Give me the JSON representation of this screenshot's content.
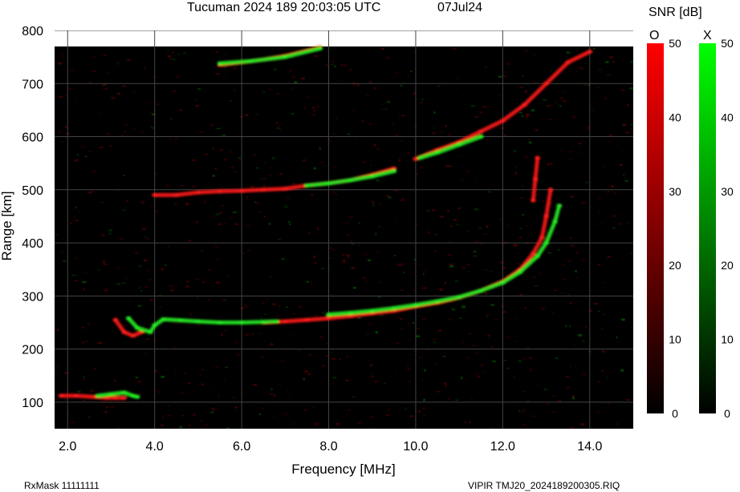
{
  "header": {
    "title": "Tucuman 2024 189 20:03:05 UTC",
    "date": "07Jul24"
  },
  "footer": {
    "rx_mask": "RxMask 11111111",
    "file": "VIPIR  TMJ20_2024189200305.RIQ"
  },
  "colorbar": {
    "title": "SNR [dB]",
    "o_label": "O",
    "x_label": "X",
    "ticks": [
      "0",
      "10",
      "20",
      "30",
      "40",
      "50"
    ],
    "range": [
      0,
      50
    ],
    "o_color": "#ff0000",
    "x_color": "#00ff00"
  },
  "colors": {
    "background": "#000000",
    "grid": "#444444",
    "o_mode": "#ff1a1a",
    "x_mode": "#22ee22"
  },
  "chart_data": {
    "type": "scatter",
    "xlabel": "Frequency [MHz]",
    "ylabel": "Range [km]",
    "xlim": [
      1.7,
      15.0
    ],
    "ylim": [
      50,
      800
    ],
    "x_ticks": [
      "2.0",
      "4.0",
      "6.0",
      "8.0",
      "10.0",
      "12.0",
      "14.0"
    ],
    "x_tick_values": [
      2,
      4,
      6,
      8,
      10,
      12,
      14
    ],
    "y_ticks": [
      "100",
      "200",
      "300",
      "400",
      "500",
      "600",
      "700",
      "800"
    ],
    "y_tick_values": [
      100,
      200,
      300,
      400,
      500,
      600,
      700,
      800
    ],
    "grid": true,
    "series": [
      {
        "name": "O",
        "color": "#ff1a1a",
        "traces": [
          [
            [
              1.85,
              112
            ],
            [
              2.2,
              112
            ],
            [
              2.6,
              110
            ],
            [
              2.9,
              108
            ],
            [
              3.1,
              108
            ],
            [
              3.3,
              108
            ]
          ],
          [
            [
              3.1,
              255
            ],
            [
              3.3,
              232
            ],
            [
              3.5,
              225
            ],
            [
              3.7,
              232
            ]
          ],
          [
            [
              6.5,
              250
            ],
            [
              7.0,
              252
            ],
            [
              7.5,
              255
            ],
            [
              8.0,
              258
            ],
            [
              8.5,
              262
            ],
            [
              9.0,
              267
            ],
            [
              9.5,
              272
            ],
            [
              10.0,
              280
            ],
            [
              10.5,
              287
            ],
            [
              11.0,
              297
            ],
            [
              11.5,
              310
            ],
            [
              12.0,
              327
            ],
            [
              12.4,
              350
            ],
            [
              12.7,
              380
            ],
            [
              12.9,
              410
            ],
            [
              13.0,
              450
            ],
            [
              13.1,
              500
            ]
          ],
          [
            [
              12.7,
              480
            ],
            [
              12.75,
              520
            ],
            [
              12.8,
              560
            ]
          ],
          [
            [
              4.0,
              490
            ],
            [
              4.5,
              490
            ],
            [
              5.0,
              495
            ],
            [
              5.5,
              497
            ],
            [
              6.0,
              498
            ],
            [
              6.5,
              500
            ],
            [
              7.0,
              502
            ],
            [
              7.5,
              508
            ],
            [
              8.0,
              512
            ],
            [
              8.5,
              518
            ],
            [
              9.0,
              528
            ],
            [
              9.5,
              540
            ]
          ],
          [
            [
              10.0,
              558
            ],
            [
              10.5,
              575
            ],
            [
              11.0,
              590
            ],
            [
              11.5,
              610
            ],
            [
              12.0,
              630
            ],
            [
              12.5,
              660
            ],
            [
              13.0,
              700
            ],
            [
              13.5,
              740
            ],
            [
              14.0,
              760
            ]
          ],
          [
            [
              5.5,
              735
            ],
            [
              6.0,
              740
            ],
            [
              6.5,
              745
            ],
            [
              7.0,
              752
            ],
            [
              7.5,
              762
            ],
            [
              7.8,
              768
            ]
          ]
        ]
      },
      {
        "name": "X",
        "color": "#22ee22",
        "traces": [
          [
            [
              2.7,
              112
            ],
            [
              3.0,
              115
            ],
            [
              3.3,
              118
            ],
            [
              3.5,
              112
            ],
            [
              3.6,
              110
            ]
          ],
          [
            [
              3.4,
              258
            ],
            [
              3.6,
              240
            ],
            [
              3.9,
              232
            ],
            [
              4.0,
              245
            ],
            [
              4.2,
              256
            ],
            [
              4.6,
              254
            ],
            [
              5.0,
              252
            ],
            [
              5.5,
              250
            ],
            [
              6.0,
              250
            ],
            [
              6.5,
              251
            ],
            [
              6.8,
              252
            ]
          ],
          [
            [
              8.0,
              265
            ],
            [
              8.5,
              268
            ],
            [
              9.0,
              272
            ],
            [
              9.5,
              277
            ],
            [
              10.0,
              283
            ],
            [
              10.5,
              290
            ],
            [
              11.0,
              298
            ],
            [
              11.5,
              310
            ],
            [
              12.0,
              325
            ],
            [
              12.4,
              345
            ],
            [
              12.8,
              375
            ],
            [
              13.0,
              400
            ],
            [
              13.2,
              440
            ],
            [
              13.3,
              470
            ]
          ],
          [
            [
              7.5,
              508
            ],
            [
              8.0,
              512
            ],
            [
              8.5,
              518
            ],
            [
              9.0,
              525
            ],
            [
              9.5,
              535
            ]
          ],
          [
            [
              10.1,
              560
            ],
            [
              10.5,
              570
            ],
            [
              11.0,
              585
            ],
            [
              11.5,
              600
            ]
          ],
          [
            [
              5.5,
              738
            ],
            [
              6.2,
              742
            ],
            [
              7.0,
              750
            ],
            [
              7.8,
              766
            ]
          ]
        ]
      }
    ]
  }
}
